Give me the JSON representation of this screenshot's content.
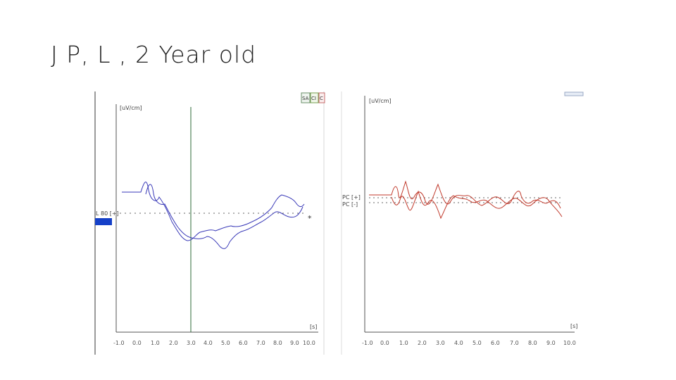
{
  "slide": {
    "title": "J P, L , 2 Year old"
  },
  "left_panel": {
    "y_unit": "[uV/cm]",
    "x_unit": "[s]",
    "x_ticks": [
      "-1.0",
      "0.0",
      "1.0",
      "2.0",
      "3.0",
      "4.0",
      "5.0",
      "6.0",
      "7.0",
      "8.0",
      "9.0",
      "10.0"
    ],
    "side_label": "L 80 [+]",
    "selection_label": "",
    "toolbar": [
      "SA",
      "CI",
      "C"
    ],
    "marker": "*",
    "colors": {
      "trace": "#3a3ab8",
      "cursor": "#2f6b3a",
      "selection": "#1540c8",
      "axis": "#555555"
    }
  },
  "right_panel": {
    "y_unit": "[uV/cm]",
    "x_unit": "[s]",
    "x_ticks": [
      "-1.0",
      "0.0",
      "1.0",
      "2.0",
      "3.0",
      "4.0",
      "5.0",
      "6.0",
      "7.0",
      "8.0",
      "9.0",
      "10.0"
    ],
    "side_label": "PC [+]",
    "side_label_2": "PC [-]",
    "colors": {
      "trace": "#c0392b",
      "axis": "#555555"
    }
  }
}
